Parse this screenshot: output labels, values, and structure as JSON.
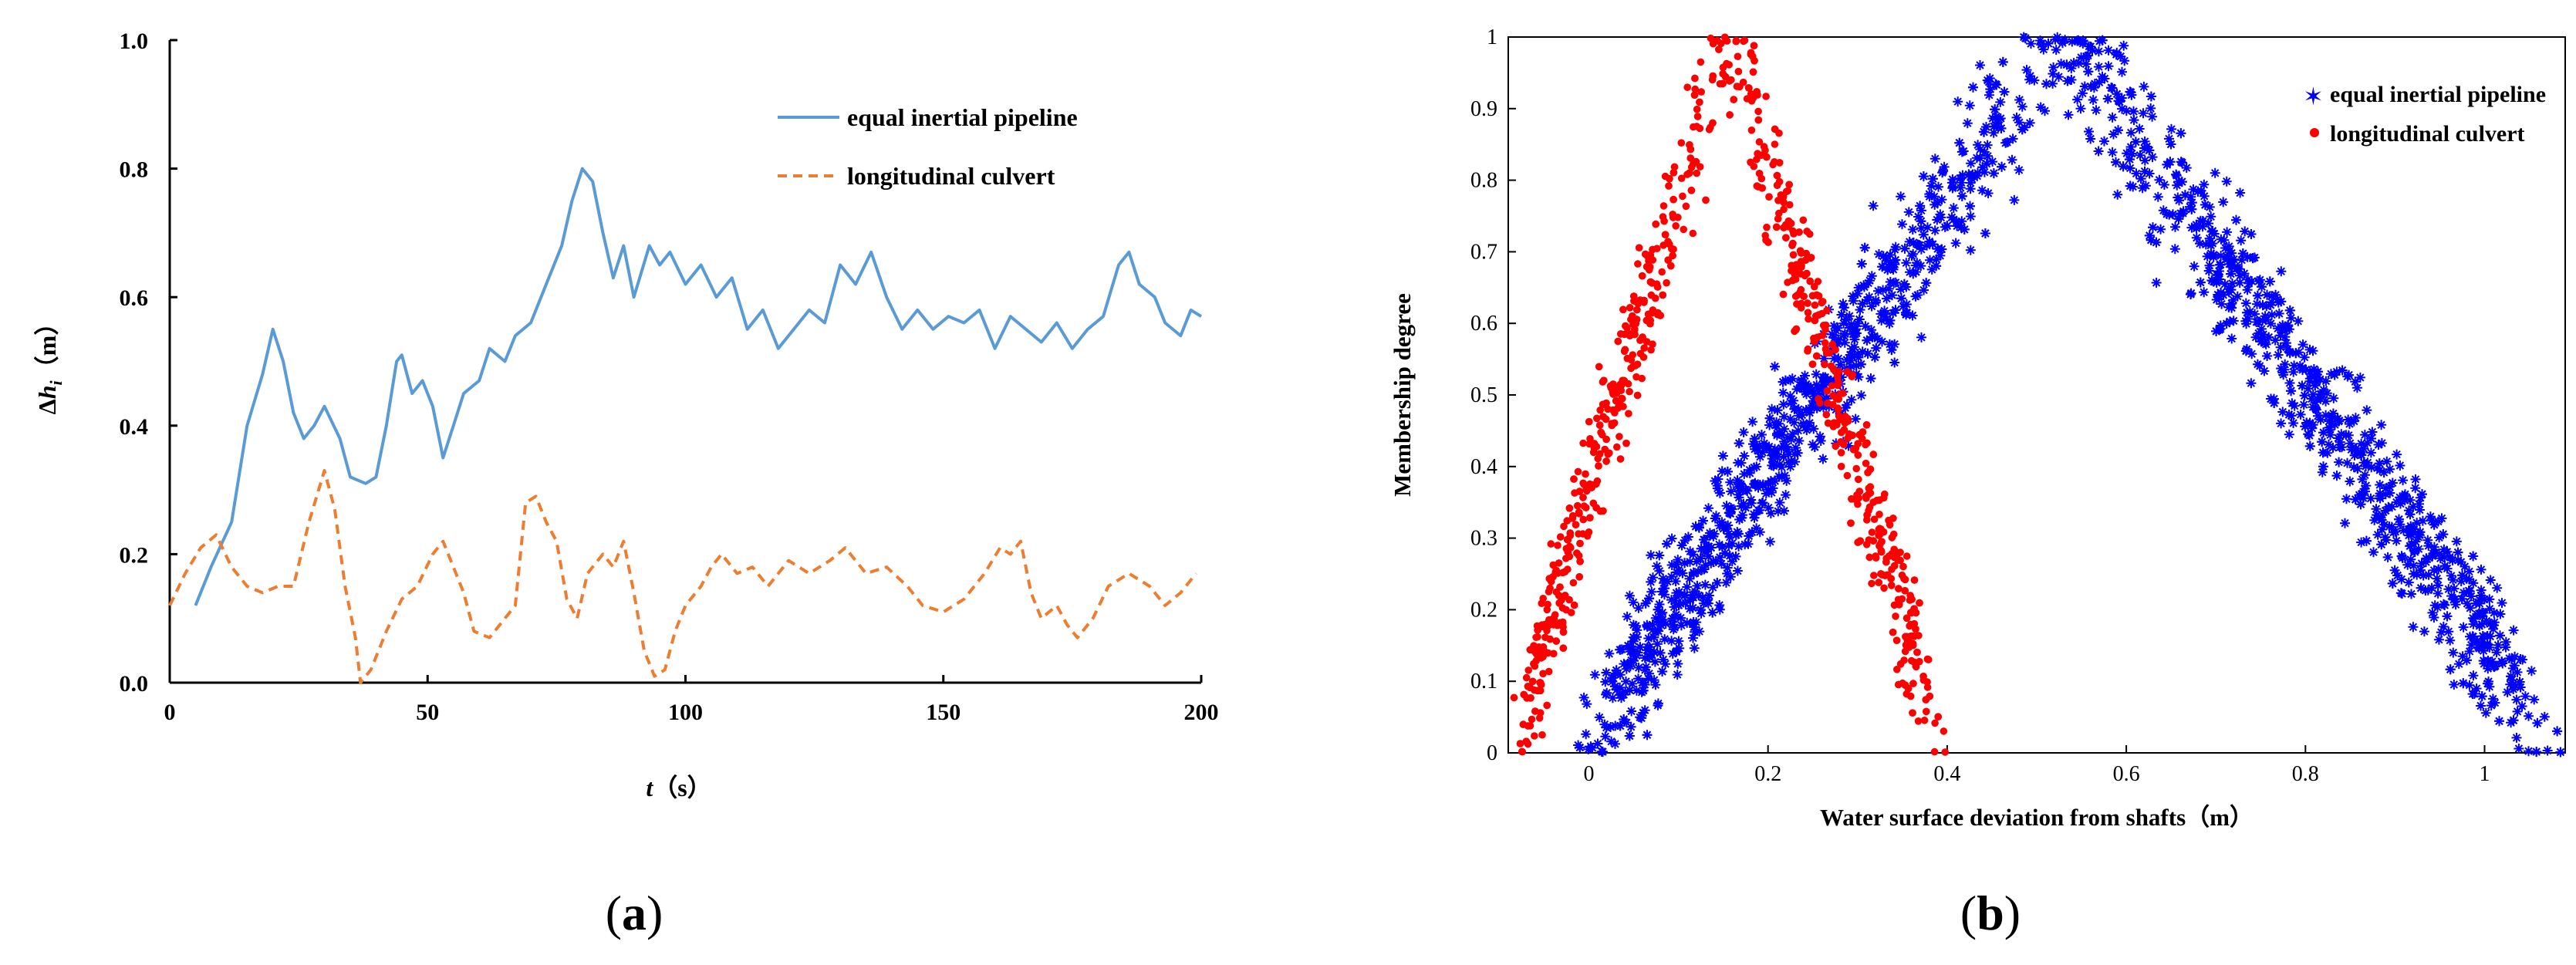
{
  "chart_data": [
    {
      "type": "line",
      "panel_label": "(a)",
      "title": "",
      "xlabel": "t（s）",
      "ylabel": "Δh_i（m）",
      "xlim": [
        0,
        200
      ],
      "ylim": [
        0.0,
        1.0
      ],
      "x_ticks": [
        0,
        50,
        100,
        150,
        200
      ],
      "y_ticks": [
        "0.0",
        "0.2",
        "0.4",
        "0.6",
        "0.8",
        "1.0"
      ],
      "legend_position": "top-right",
      "series": [
        {
          "name": "equal inertial pipeline",
          "color": "#5b9bd5",
          "style": "solid",
          "points": [
            [
              5,
              0.12
            ],
            [
              8,
              0.18
            ],
            [
              12,
              0.25
            ],
            [
              15,
              0.4
            ],
            [
              18,
              0.48
            ],
            [
              20,
              0.55
            ],
            [
              22,
              0.5
            ],
            [
              24,
              0.42
            ],
            [
              26,
              0.38
            ],
            [
              28,
              0.4
            ],
            [
              30,
              0.43
            ],
            [
              33,
              0.38
            ],
            [
              35,
              0.32
            ],
            [
              38,
              0.31
            ],
            [
              40,
              0.32
            ],
            [
              42,
              0.4
            ],
            [
              44,
              0.5
            ],
            [
              45,
              0.51
            ],
            [
              47,
              0.45
            ],
            [
              49,
              0.47
            ],
            [
              51,
              0.43
            ],
            [
              53,
              0.35
            ],
            [
              55,
              0.4
            ],
            [
              57,
              0.45
            ],
            [
              60,
              0.47
            ],
            [
              62,
              0.52
            ],
            [
              65,
              0.5
            ],
            [
              67,
              0.54
            ],
            [
              70,
              0.56
            ],
            [
              73,
              0.62
            ],
            [
              76,
              0.68
            ],
            [
              78,
              0.75
            ],
            [
              80,
              0.8
            ],
            [
              82,
              0.78
            ],
            [
              84,
              0.7
            ],
            [
              86,
              0.63
            ],
            [
              88,
              0.68
            ],
            [
              90,
              0.6
            ],
            [
              93,
              0.68
            ],
            [
              95,
              0.65
            ],
            [
              97,
              0.67
            ],
            [
              100,
              0.62
            ],
            [
              103,
              0.65
            ],
            [
              106,
              0.6
            ],
            [
              109,
              0.63
            ],
            [
              112,
              0.55
            ],
            [
              115,
              0.58
            ],
            [
              118,
              0.52
            ],
            [
              121,
              0.55
            ],
            [
              124,
              0.58
            ],
            [
              127,
              0.56
            ],
            [
              130,
              0.65
            ],
            [
              133,
              0.62
            ],
            [
              136,
              0.67
            ],
            [
              139,
              0.6
            ],
            [
              142,
              0.55
            ],
            [
              145,
              0.58
            ],
            [
              148,
              0.55
            ],
            [
              151,
              0.57
            ],
            [
              154,
              0.56
            ],
            [
              157,
              0.58
            ],
            [
              160,
              0.52
            ],
            [
              163,
              0.57
            ],
            [
              166,
              0.55
            ],
            [
              169,
              0.53
            ],
            [
              172,
              0.56
            ],
            [
              175,
              0.52
            ],
            [
              178,
              0.55
            ],
            [
              181,
              0.57
            ],
            [
              184,
              0.65
            ],
            [
              186,
              0.67
            ],
            [
              188,
              0.62
            ],
            [
              191,
              0.6
            ],
            [
              193,
              0.56
            ],
            [
              196,
              0.54
            ],
            [
              198,
              0.58
            ],
            [
              200,
              0.57
            ]
          ]
        },
        {
          "name": "longitudinal culvert",
          "color": "#ed7d31",
          "style": "dashed",
          "points": [
            [
              0,
              0.12
            ],
            [
              3,
              0.17
            ],
            [
              6,
              0.21
            ],
            [
              9,
              0.23
            ],
            [
              12,
              0.18
            ],
            [
              15,
              0.15
            ],
            [
              18,
              0.14
            ],
            [
              21,
              0.15
            ],
            [
              24,
              0.15
            ],
            [
              27,
              0.25
            ],
            [
              30,
              0.33
            ],
            [
              32,
              0.27
            ],
            [
              34,
              0.15
            ],
            [
              36,
              0.07
            ],
            [
              37,
              0.0
            ],
            [
              39,
              0.02
            ],
            [
              42,
              0.08
            ],
            [
              45,
              0.13
            ],
            [
              48,
              0.15
            ],
            [
              51,
              0.2
            ],
            [
              53,
              0.22
            ],
            [
              55,
              0.18
            ],
            [
              57,
              0.14
            ],
            [
              59,
              0.08
            ],
            [
              62,
              0.07
            ],
            [
              65,
              0.1
            ],
            [
              67,
              0.12
            ],
            [
              69,
              0.28
            ],
            [
              71,
              0.29
            ],
            [
              73,
              0.25
            ],
            [
              75,
              0.22
            ],
            [
              77,
              0.13
            ],
            [
              79,
              0.1
            ],
            [
              81,
              0.17
            ],
            [
              84,
              0.2
            ],
            [
              86,
              0.18
            ],
            [
              88,
              0.22
            ],
            [
              90,
              0.14
            ],
            [
              92,
              0.05
            ],
            [
              94,
              0.01
            ],
            [
              96,
              0.02
            ],
            [
              98,
              0.08
            ],
            [
              100,
              0.12
            ],
            [
              103,
              0.15
            ],
            [
              105,
              0.18
            ],
            [
              107,
              0.2
            ],
            [
              110,
              0.17
            ],
            [
              113,
              0.18
            ],
            [
              116,
              0.15
            ],
            [
              120,
              0.19
            ],
            [
              124,
              0.17
            ],
            [
              128,
              0.19
            ],
            [
              131,
              0.21
            ],
            [
              135,
              0.17
            ],
            [
              139,
              0.18
            ],
            [
              143,
              0.15
            ],
            [
              146,
              0.12
            ],
            [
              150,
              0.11
            ],
            [
              154,
              0.13
            ],
            [
              158,
              0.17
            ],
            [
              161,
              0.21
            ],
            [
              163,
              0.2
            ],
            [
              165,
              0.22
            ],
            [
              167,
              0.14
            ],
            [
              169,
              0.1
            ],
            [
              172,
              0.12
            ],
            [
              174,
              0.09
            ],
            [
              176,
              0.07
            ],
            [
              179,
              0.1
            ],
            [
              182,
              0.15
            ],
            [
              186,
              0.17
            ],
            [
              190,
              0.15
            ],
            [
              193,
              0.12
            ],
            [
              196,
              0.14
            ],
            [
              199,
              0.17
            ]
          ]
        }
      ]
    },
    {
      "type": "scatter",
      "panel_label": "(b)",
      "title": "",
      "xlabel": "Water surface deviation from shafts（m）",
      "ylabel": "Membership degree",
      "xlim": [
        -0.09,
        1.09
      ],
      "ylim": [
        0,
        1
      ],
      "x_ticks": [
        "0",
        "0.2",
        "0.4",
        "0.6",
        "0.8",
        "1"
      ],
      "y_ticks": [
        "0",
        "0.1",
        "0.2",
        "0.3",
        "0.4",
        "0.5",
        "0.6",
        "0.7",
        "0.8",
        "0.9",
        "1"
      ],
      "legend_position": "top-right",
      "series": [
        {
          "name": "equal inertial pipeline",
          "color": "#0000ff",
          "marker": "star",
          "distribution": "triangular membership cloud",
          "peak_x": 0.53,
          "peak_y": 1.0,
          "x_min": -0.02,
          "x_max": 1.09,
          "approx_points": 2000
        },
        {
          "name": "longitudinal culvert",
          "color": "#ff0000",
          "marker": "dot",
          "distribution": "triangular membership cloud",
          "peak_x": 0.155,
          "peak_y": 1.0,
          "x_min": -0.09,
          "x_max": 0.4,
          "approx_points": 1100
        }
      ]
    }
  ]
}
